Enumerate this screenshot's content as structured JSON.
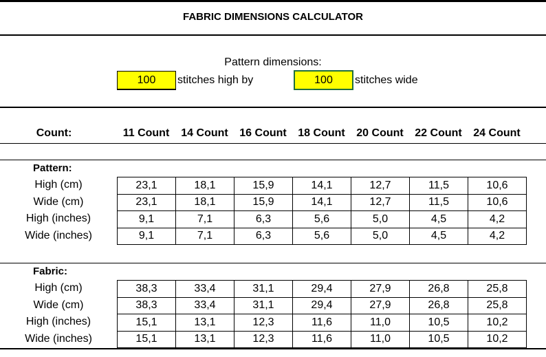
{
  "title": "FABRIC DIMENSIONS CALCULATOR",
  "pattern_dimensions_label": "Pattern dimensions:",
  "stitches_high": "100",
  "stitches_high_label": "stitches high by",
  "stitches_wide": "100",
  "stitches_wide_label": "stitches wide",
  "input_color": "#ffff00",
  "count_label": "Count:",
  "counts": [
    "11 Count",
    "14 Count",
    "16 Count",
    "18 Count",
    "20 Count",
    "22 Count",
    "24 Count"
  ],
  "pattern": {
    "label": "Pattern:",
    "rows": [
      {
        "label": "High (cm)",
        "values": [
          "23,1",
          "18,1",
          "15,9",
          "14,1",
          "12,7",
          "11,5",
          "10,6"
        ]
      },
      {
        "label": "Wide (cm)",
        "values": [
          "23,1",
          "18,1",
          "15,9",
          "14,1",
          "12,7",
          "11,5",
          "10,6"
        ]
      },
      {
        "label": "High (inches)",
        "values": [
          "9,1",
          "7,1",
          "6,3",
          "5,6",
          "5,0",
          "4,5",
          "4,2"
        ]
      },
      {
        "label": "Wide (inches)",
        "values": [
          "9,1",
          "7,1",
          "6,3",
          "5,6",
          "5,0",
          "4,5",
          "4,2"
        ]
      }
    ]
  },
  "fabric": {
    "label": "Fabric:",
    "rows": [
      {
        "label": "High (cm)",
        "values": [
          "38,3",
          "33,4",
          "31,1",
          "29,4",
          "27,9",
          "26,8",
          "25,8"
        ]
      },
      {
        "label": "Wide (cm)",
        "values": [
          "38,3",
          "33,4",
          "31,1",
          "29,4",
          "27,9",
          "26,8",
          "25,8"
        ]
      },
      {
        "label": "High (inches)",
        "values": [
          "15,1",
          "13,1",
          "12,3",
          "11,6",
          "11,0",
          "10,5",
          "10,2"
        ]
      },
      {
        "label": "Wide (inches)",
        "values": [
          "15,1",
          "13,1",
          "12,3",
          "11,6",
          "11,0",
          "10,5",
          "10,2"
        ]
      }
    ]
  }
}
